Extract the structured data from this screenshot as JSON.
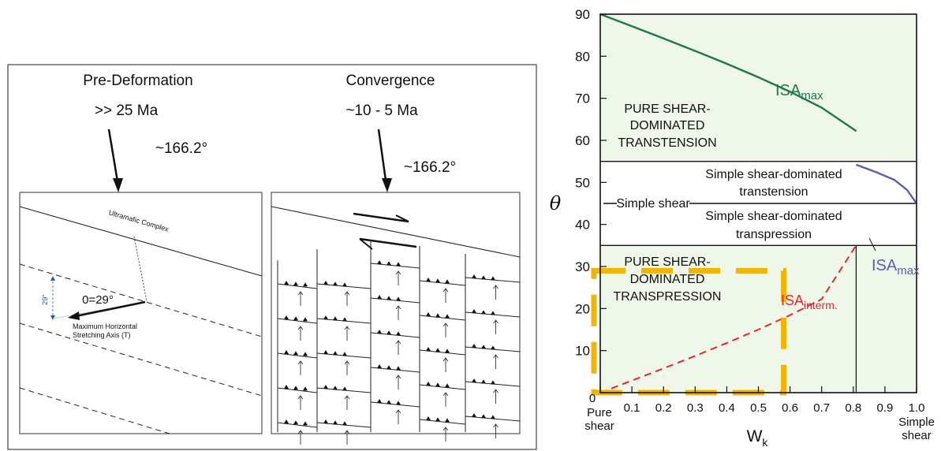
{
  "left_panel": {
    "predeformation": {
      "title": "Pre-Deformation",
      "age": ">> 25 Ma",
      "azimuth": "~166.2°"
    },
    "convergence": {
      "title": "Convergence",
      "age": "~10 - 5 Ma",
      "azimuth": "~166.2°"
    },
    "map1": {
      "ultramafic_label": "Ultramafic Complex",
      "angle_label": "29°",
      "theta_label": "0=29°",
      "axis_label_line1": "Maximum Horizontal",
      "axis_label_line2": "Stretching Axis (T)"
    }
  },
  "chart_data": {
    "type": "line",
    "xlabel": "W",
    "xlabel_sub": "k",
    "ylabel": "θ",
    "xlim": [
      0,
      1
    ],
    "ylim": [
      0,
      90
    ],
    "x_ticks": [
      "0",
      "0.1",
      "0.2",
      "0.3",
      "0.4",
      "0.5",
      "0.6",
      "0.7",
      "0.8",
      "0.9",
      "1.0"
    ],
    "y_ticks": [
      "0",
      "10",
      "20",
      "30",
      "40",
      "50",
      "60",
      "70",
      "80",
      "90"
    ],
    "x_end_labels": {
      "left_1": "Pure",
      "left_2": "shear",
      "right_1": "Simple",
      "right_2": "shear"
    },
    "regions": {
      "transtension": [
        "PURE SHEAR-",
        "DOMINATED",
        "TRANSTENSION"
      ],
      "transpression": [
        "PURE SHEAR-",
        "DOMINATED",
        "TRANSPRESSION"
      ],
      "ss_transtension": [
        "Simple shear-dominated",
        "transtension"
      ],
      "ss_transpression": [
        "Simple shear-dominated",
        "transpression"
      ],
      "simple_shear": "Simple shear"
    },
    "series": [
      {
        "name": "ISAmax",
        "label_main": "ISA",
        "label_sub": "max",
        "color": "#1a7a4a",
        "style": "solid",
        "x": [
          0,
          0.1,
          0.2,
          0.3,
          0.4,
          0.5,
          0.6,
          0.7,
          0.8094
        ],
        "y": [
          90,
          87.13,
          84.23,
          81.27,
          78.21,
          75.0,
          71.57,
          67.78,
          62.22
        ]
      },
      {
        "name": "ISAmax",
        "label_main": "ISA",
        "label_sub": "max",
        "color": "#5b5fb0",
        "style": "solid",
        "x": [
          0.809,
          0.87,
          0.93,
          0.97,
          1.0
        ],
        "y": [
          54.2,
          52.5,
          50.6,
          48.2,
          45
        ]
      },
      {
        "name": "ISAinterm.",
        "label_main": "ISA",
        "label_sub": "interm.",
        "color": "#e8242b",
        "style": "dashed",
        "x": [
          0,
          0.1,
          0.2,
          0.3,
          0.4,
          0.5,
          0.6,
          0.7,
          0.809
        ],
        "y": [
          0,
          2.87,
          5.77,
          8.73,
          11.79,
          15.0,
          18.43,
          22.22,
          35
        ]
      }
    ],
    "boundaries": {
      "upper_y": 55,
      "middle_y": 45,
      "lower_y": 35,
      "vertical_x": 0.809
    },
    "highlight_box": {
      "x": [
        0,
        0.57
      ],
      "y": [
        0,
        29
      ],
      "color": "#f2b400"
    }
  }
}
